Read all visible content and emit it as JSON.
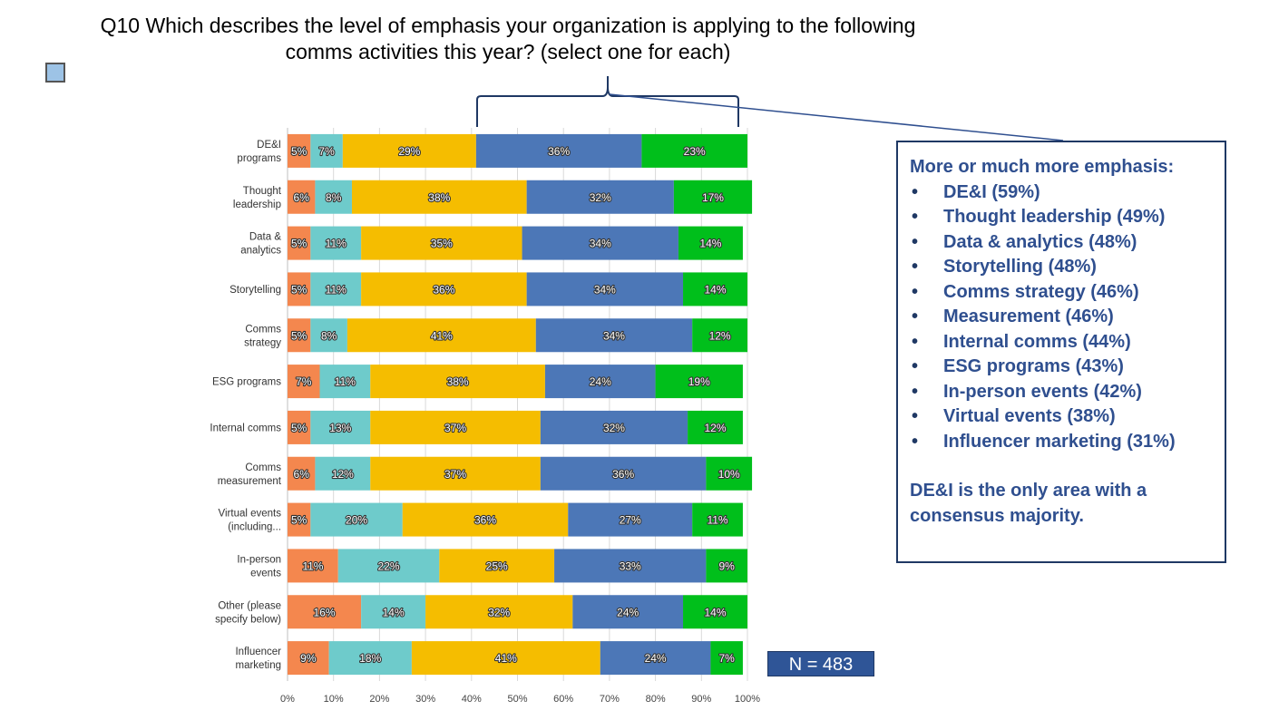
{
  "title": {
    "line1": "Q10 Which describes the level of emphasis your organization is applying to the following",
    "line2": "comms activities this year? (select one for each)"
  },
  "colors": [
    "#f4874e",
    "#6ecbcb",
    "#f5bd00",
    "#4c77b7",
    "#00bf1b"
  ],
  "chart_data": {
    "type": "bar",
    "orientation": "horizontal",
    "stacked": true,
    "categories": [
      [
        "DE&I",
        "programs"
      ],
      [
        "Thought",
        "leadership"
      ],
      [
        "Data &",
        "analytics"
      ],
      [
        "Storytelling"
      ],
      [
        "Comms",
        "strategy"
      ],
      [
        "ESG programs"
      ],
      [
        "Internal comms"
      ],
      [
        "Comms",
        "measurement"
      ],
      [
        "Virtual events",
        "(including..."
      ],
      [
        "In-person",
        "events"
      ],
      [
        "Other (please",
        "specify below)"
      ],
      [
        "Influencer",
        "marketing"
      ]
    ],
    "series": [
      {
        "values": [
          5,
          6,
          5,
          5,
          5,
          7,
          5,
          6,
          5,
          11,
          16,
          9
        ]
      },
      {
        "values": [
          7,
          8,
          11,
          11,
          8,
          11,
          13,
          12,
          20,
          22,
          14,
          18
        ]
      },
      {
        "values": [
          29,
          38,
          35,
          36,
          41,
          38,
          37,
          37,
          36,
          25,
          32,
          41
        ]
      },
      {
        "values": [
          36,
          32,
          34,
          34,
          34,
          24,
          32,
          36,
          27,
          33,
          24,
          24
        ]
      },
      {
        "values": [
          23,
          17,
          14,
          14,
          12,
          19,
          12,
          10,
          11,
          9,
          14,
          7
        ]
      }
    ],
    "xticks": [
      "0%",
      "10%",
      "20%",
      "30%",
      "40%",
      "50%",
      "60%",
      "70%",
      "80%",
      "90%",
      "100%"
    ],
    "xlim": [
      0,
      100
    ],
    "value_suffix": "%"
  },
  "callout": {
    "heading": "More or much more emphasis:",
    "items": [
      "DE&I (59%)",
      "Thought leadership (49%)",
      "Data & analytics (48%)",
      "Storytelling (48%)",
      "Comms strategy (46%)",
      "Measurement (46%)",
      "Internal comms (44%)",
      "ESG programs (43%)",
      "In-person events (42%)",
      "Virtual events (38%)",
      "Influencer marketing (31%)"
    ],
    "note_line1": "DE&I is the only area with a",
    "note_line2": "consensus majority."
  },
  "n_label": "N = 483"
}
